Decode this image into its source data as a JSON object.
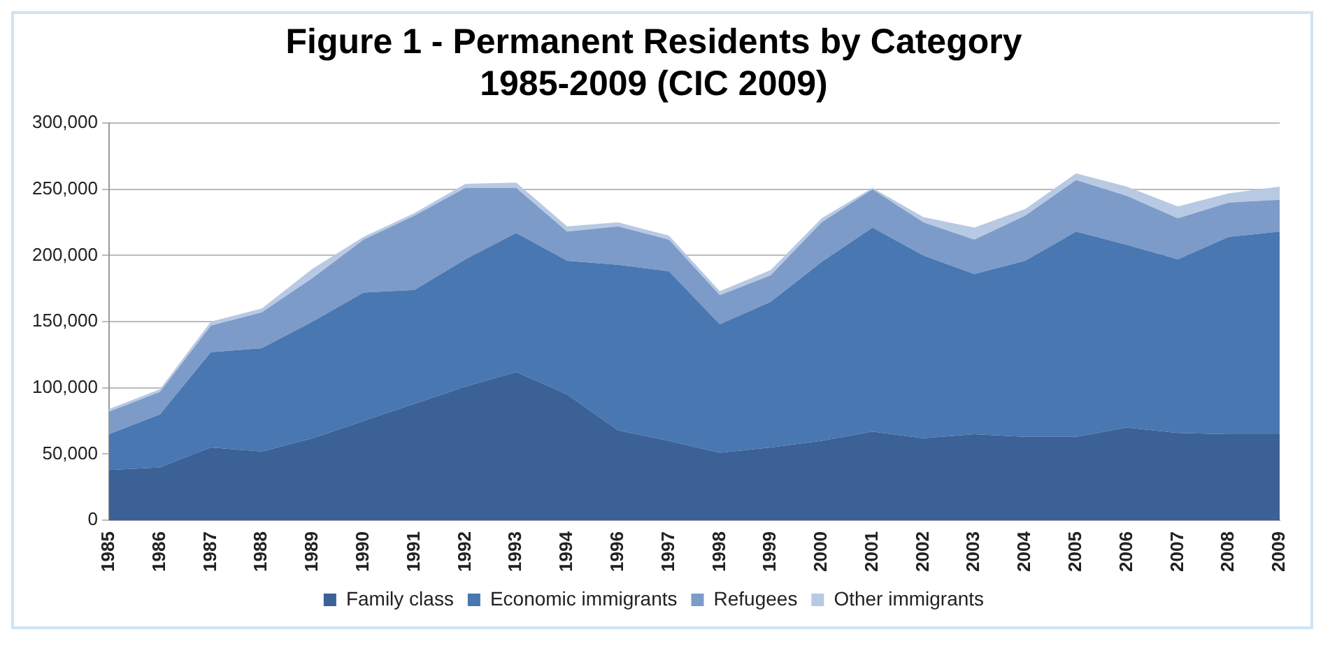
{
  "chart_data": {
    "type": "area",
    "title": "Figure 1 - Permanent Residents by Category\n1985-2009 (CIC 2009)",
    "stacked": true,
    "categories": [
      "1985",
      "1986",
      "1987",
      "1988",
      "1989",
      "1990",
      "1991",
      "1992",
      "1993",
      "1994",
      "1996",
      "1997",
      "1998",
      "1999",
      "2000",
      "2001",
      "2002",
      "2003",
      "2004",
      "2005",
      "2006",
      "2007",
      "2008",
      "2009"
    ],
    "series": [
      {
        "name": "Family class",
        "color": "#3b6196",
        "values": [
          38000,
          40000,
          55000,
          52000,
          62000,
          75000,
          88000,
          101000,
          112000,
          95000,
          68000,
          60000,
          51000,
          55000,
          60000,
          67000,
          62000,
          65000,
          63000,
          63000,
          70000,
          66000,
          65000,
          65000
        ]
      },
      {
        "name": "Economic immigrants",
        "color": "#4877b1",
        "values": [
          27000,
          40000,
          72000,
          78000,
          88000,
          97000,
          86000,
          96000,
          105000,
          101000,
          125000,
          128000,
          97000,
          110000,
          135000,
          154000,
          138000,
          121000,
          133000,
          155000,
          138000,
          131000,
          149000,
          153000
        ]
      },
      {
        "name": "Refugees",
        "color": "#7c9bc9",
        "values": [
          17000,
          17000,
          20000,
          27000,
          33000,
          40000,
          56000,
          54000,
          34000,
          22000,
          29000,
          24000,
          22000,
          20000,
          30000,
          29000,
          25000,
          26000,
          34000,
          39000,
          37000,
          31000,
          26000,
          24000
        ]
      },
      {
        "name": "Other immigrants",
        "color": "#b8c9e3",
        "values": [
          2000,
          2000,
          3000,
          3000,
          7000,
          2000,
          2000,
          3000,
          4000,
          4000,
          3000,
          3000,
          3000,
          4000,
          3000,
          1000,
          4000,
          9000,
          5000,
          5000,
          7000,
          9000,
          7000,
          10000
        ]
      }
    ],
    "ylim": [
      0,
      300000
    ],
    "yticks": [
      {
        "value": 0,
        "label": "0"
      },
      {
        "value": 50000,
        "label": "50,000"
      },
      {
        "value": 100000,
        "label": "100,000"
      },
      {
        "value": 150000,
        "label": "150,000"
      },
      {
        "value": 200000,
        "label": "200,000"
      },
      {
        "value": 250000,
        "label": "250,000"
      },
      {
        "value": 300000,
        "label": "300,000"
      }
    ],
    "grid": "y",
    "legend": "bottom"
  }
}
